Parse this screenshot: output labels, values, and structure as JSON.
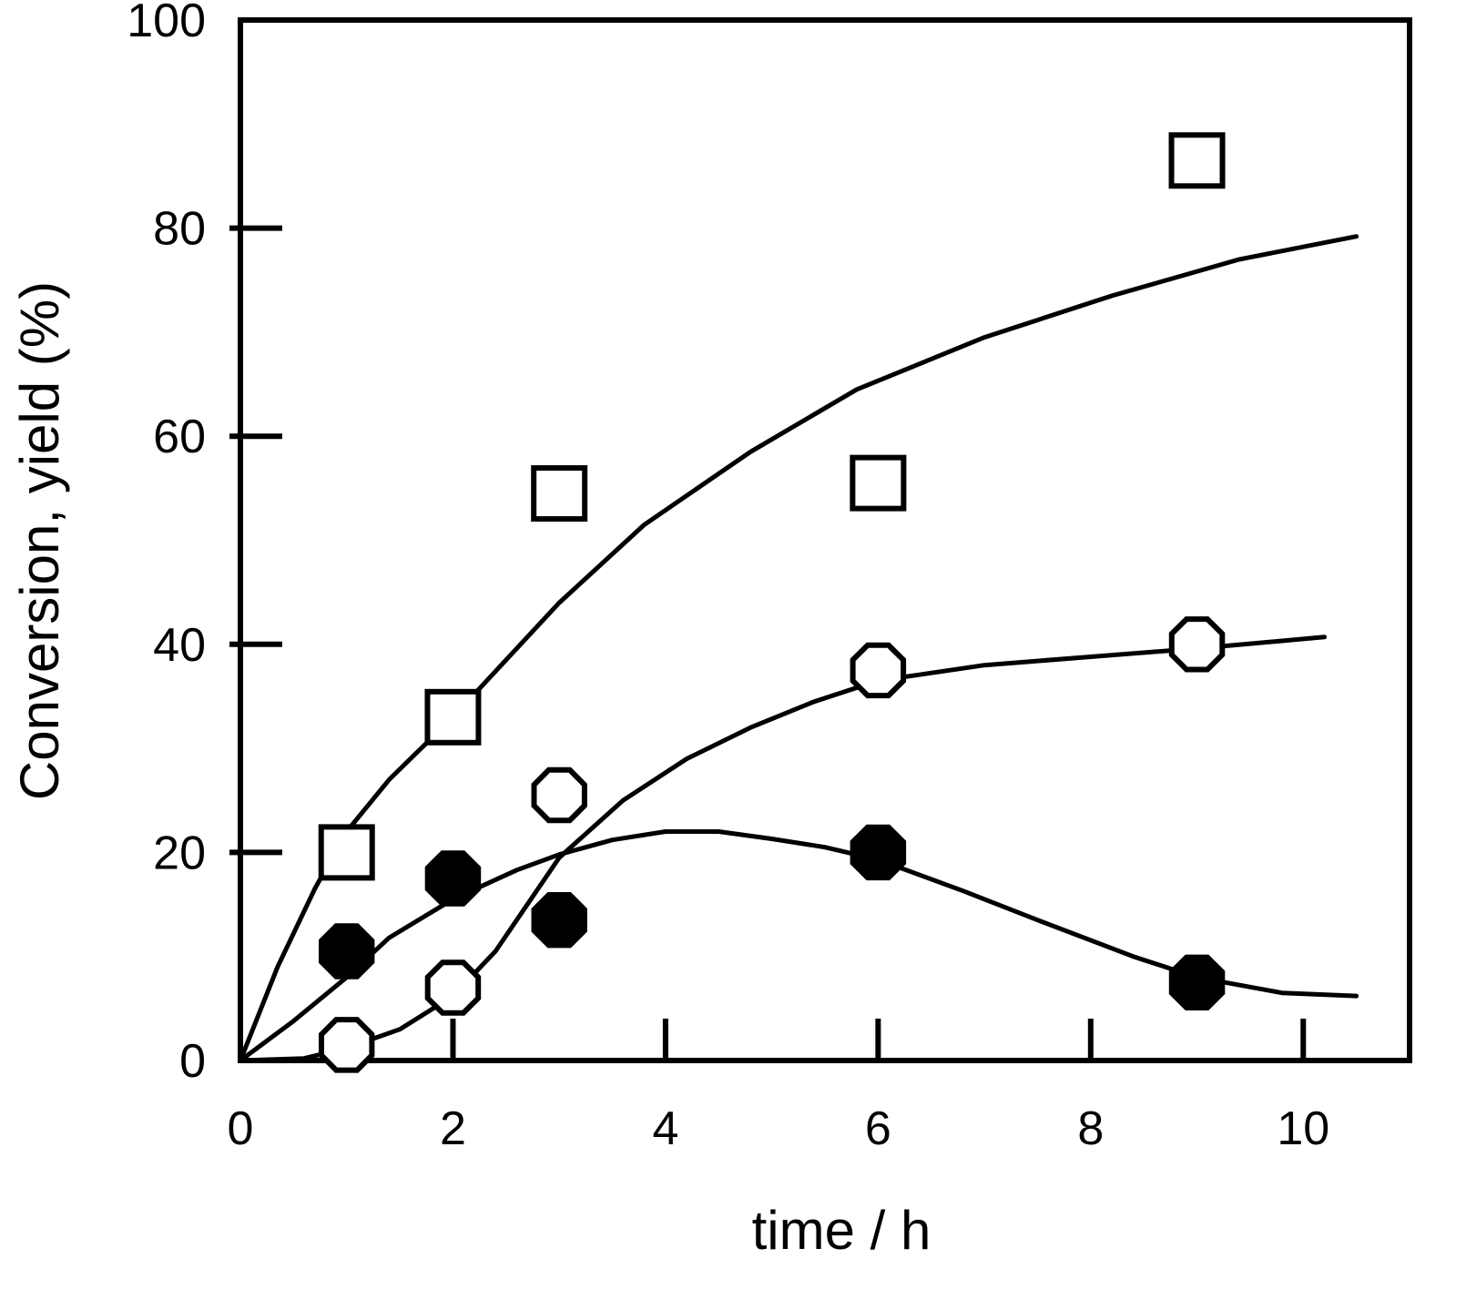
{
  "chart_data": {
    "type": "scatter",
    "title": "",
    "xlabel": "time / h",
    "ylabel": "Conversion, yield (%)",
    "xlim": [
      0,
      11
    ],
    "ylim": [
      0,
      100
    ],
    "x_ticks": [
      0,
      2,
      4,
      6,
      8,
      10
    ],
    "y_ticks": [
      0,
      20,
      40,
      60,
      80,
      100
    ],
    "grid": false,
    "legend": "none",
    "series": [
      {
        "name": "open-squares",
        "marker": "square",
        "filled": false,
        "points": [
          [
            1,
            20
          ],
          [
            2,
            33
          ],
          [
            3,
            54.5
          ],
          [
            6,
            55.5
          ],
          [
            9,
            86.5
          ]
        ],
        "fit_curve": [
          [
            0,
            0
          ],
          [
            0.35,
            9
          ],
          [
            0.7,
            16.5
          ],
          [
            1,
            22
          ],
          [
            1.4,
            27
          ],
          [
            2,
            33
          ],
          [
            2.5,
            38.5
          ],
          [
            3,
            44
          ],
          [
            3.8,
            51.5
          ],
          [
            4.8,
            58.5
          ],
          [
            5.8,
            64.5
          ],
          [
            7,
            69.5
          ],
          [
            8.2,
            73.5
          ],
          [
            9.4,
            77
          ],
          [
            10.5,
            79.2
          ]
        ]
      },
      {
        "name": "open-circles",
        "marker": "octagon",
        "filled": false,
        "points": [
          [
            1,
            1.5
          ],
          [
            2,
            7
          ],
          [
            3,
            25.5
          ],
          [
            6,
            37.5
          ],
          [
            9,
            40
          ]
        ],
        "fit_curve": [
          [
            0,
            0
          ],
          [
            0.6,
            0.2
          ],
          [
            1,
            1.2
          ],
          [
            1.5,
            3
          ],
          [
            2,
            6.2
          ],
          [
            2.4,
            10.5
          ],
          [
            3,
            19.5
          ],
          [
            3.6,
            25
          ],
          [
            4.2,
            29
          ],
          [
            4.8,
            32
          ],
          [
            5.4,
            34.5
          ],
          [
            6,
            36.5
          ],
          [
            7,
            38
          ],
          [
            8,
            38.8
          ],
          [
            9,
            39.6
          ],
          [
            10.2,
            40.7
          ]
        ]
      },
      {
        "name": "filled-circles",
        "marker": "octagon",
        "filled": true,
        "points": [
          [
            1,
            10.5
          ],
          [
            2,
            17.5
          ],
          [
            3,
            13.5
          ],
          [
            6,
            20
          ],
          [
            9,
            7.5
          ]
        ],
        "fit_curve": [
          [
            0,
            0
          ],
          [
            0.5,
            3.8
          ],
          [
            1,
            8
          ],
          [
            1.4,
            11.8
          ],
          [
            2,
            15.5
          ],
          [
            2.6,
            18.3
          ],
          [
            3,
            19.8
          ],
          [
            3.5,
            21.2
          ],
          [
            4,
            22
          ],
          [
            4.5,
            22
          ],
          [
            5,
            21.3
          ],
          [
            5.5,
            20.5
          ],
          [
            6,
            19.3
          ],
          [
            6.8,
            16.3
          ],
          [
            7.5,
            13.5
          ],
          [
            8.4,
            10
          ],
          [
            9,
            8
          ],
          [
            9.8,
            6.5
          ],
          [
            10.5,
            6.2
          ]
        ]
      }
    ]
  }
}
